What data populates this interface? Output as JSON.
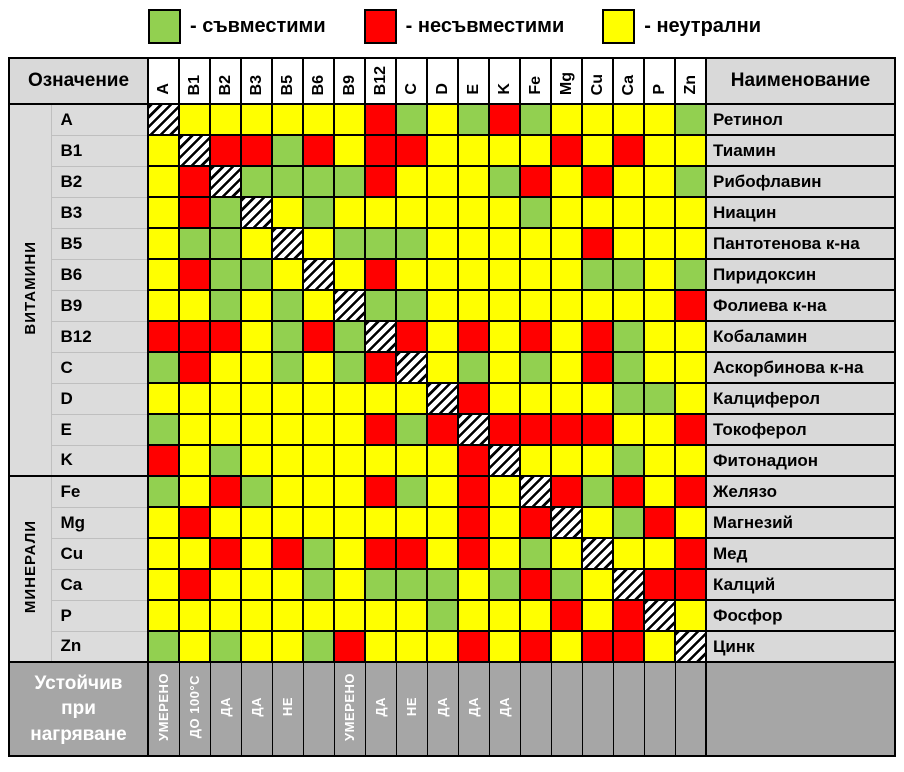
{
  "colors": {
    "compatible": "#92D050",
    "incompatible": "#FF0000",
    "neutral": "#FFFF00",
    "header_bg": "#D9D9D9",
    "label_bg": "#DCDCDC",
    "footer_bg": "#A6A6A6",
    "footer_text": "#FFFFFF",
    "grid_light": "#BFBFBF"
  },
  "legend": {
    "items": [
      {
        "label": "- съвместими",
        "key": "compatible"
      },
      {
        "label": "- несъвместими",
        "key": "incompatible"
      },
      {
        "label": "- неутрални",
        "key": "neutral"
      }
    ]
  },
  "chart_data": {
    "type": "heatmap",
    "designation_header": "Означение",
    "name_header": "Наименование",
    "columns": [
      "A",
      "B1",
      "B2",
      "B3",
      "B5",
      "B6",
      "B9",
      "B12",
      "C",
      "D",
      "E",
      "K",
      "Fe",
      "Mg",
      "Cu",
      "Ca",
      "P",
      "Zn"
    ],
    "groups": [
      {
        "label": "ВИТАМИНИ",
        "rows": 12
      },
      {
        "label": "МИНЕРАЛИ",
        "rows": 6
      }
    ],
    "cell_codes": {
      "G": "съвместими",
      "R": "несъвместими",
      "Y": "неутрални",
      "D": "диагонал (същият елемент)"
    },
    "rows": [
      {
        "code": "A",
        "name": "Ретинол",
        "cells": "DYYYYYYRGYGRGYYYYG"
      },
      {
        "code": "B1",
        "name": "Тиамин",
        "cells": "YDRRGRYRRYYYYRYRYY"
      },
      {
        "code": "B2",
        "name": "Рибофлавин",
        "cells": "YRDGGGGRYYYGRYRYYG"
      },
      {
        "code": "B3",
        "name": "Ниацин",
        "cells": "YRGDYGYYYYYYGYYYYY"
      },
      {
        "code": "B5",
        "name": "Пантотенова к-на",
        "cells": "YGGYDYGGGYYYYYRYYY"
      },
      {
        "code": "B6",
        "name": "Пиридоксин",
        "cells": "YRGGYDYRYYYYYYGGYG"
      },
      {
        "code": "B9",
        "name": "Фолиева к-на",
        "cells": "YYGYGYDGGYYYYYYYYR"
      },
      {
        "code": "B12",
        "name": "Кобаламин",
        "cells": "RRRYGRGDRYRYRYRGYY"
      },
      {
        "code": "C",
        "name": "Аскорбинова к-на",
        "cells": "GRYYGYGRDYGYGYRGYY"
      },
      {
        "code": "D",
        "name": "Калциферол",
        "cells": "YYYYYYYYYDRYYYYGGY"
      },
      {
        "code": "E",
        "name": "Токоферол",
        "cells": "GYYYYYYRGRDRRRRYYR"
      },
      {
        "code": "K",
        "name": "Фитонадион",
        "cells": "RYGYYYYYYYRDYYYGYY"
      },
      {
        "code": "Fe",
        "name": "Желязо",
        "cells": "GYRGYYYRGYRYDRGRYR"
      },
      {
        "code": "Mg",
        "name": "Магнезий",
        "cells": "YRYYYYYYYYRYRDYGRY"
      },
      {
        "code": "Cu",
        "name": "Мед",
        "cells": "YYRYRGYRRYRYGYDYYR"
      },
      {
        "code": "Ca",
        "name": "Калций",
        "cells": "YRYYYGYGGGYGRGYDRR"
      },
      {
        "code": "P",
        "name": "Фосфор",
        "cells": "YYYYYYYYYGYYYRYRDY"
      },
      {
        "code": "Zn",
        "name": "Цинк",
        "cells": "GYGYYGRYYYRYRYRRYD"
      }
    ],
    "footer": {
      "label": "Устойчив при нагряване",
      "values": [
        "УМЕРЕНО",
        "ДО 100°С",
        "ДА",
        "ДА",
        "НЕ",
        "",
        "УМЕРЕНО",
        "ДА",
        "НЕ",
        "ДА",
        "ДА",
        "ДА",
        "",
        "",
        "",
        "",
        "",
        ""
      ]
    }
  }
}
